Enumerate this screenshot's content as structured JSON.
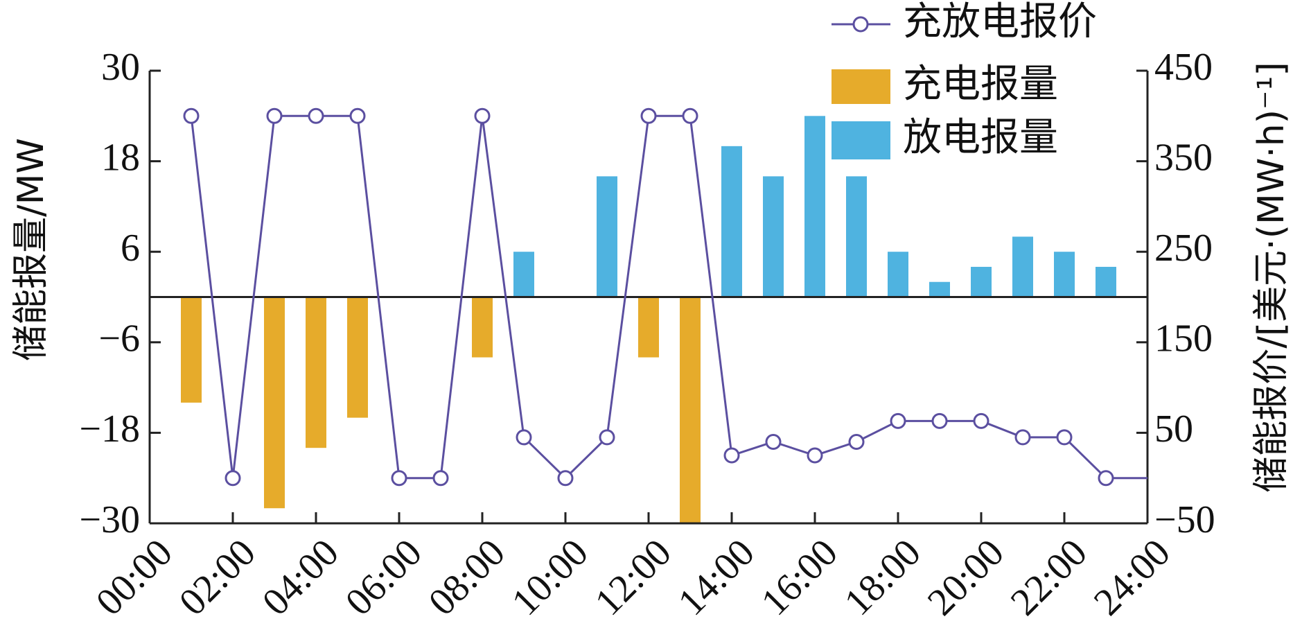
{
  "chart_data": {
    "type": "bar",
    "xlabel": "",
    "y_left_label": "储能报量/MW",
    "y_right_label": "储能报价/[美元·(MW·h)⁻¹]",
    "x_tick_labels": [
      "00:00",
      "02:00",
      "04:00",
      "06:00",
      "08:00",
      "10:00",
      "12:00",
      "14:00",
      "16:00",
      "18:00",
      "20:00",
      "22:00",
      "24:00"
    ],
    "x_ticks": [
      0,
      2,
      4,
      6,
      8,
      10,
      12,
      14,
      16,
      18,
      20,
      22,
      24
    ],
    "x_range": [
      0,
      24
    ],
    "y_left_ticks": [
      30,
      18,
      6,
      -6,
      -18,
      -30
    ],
    "y_left_tick_labels": [
      "30",
      "18",
      "6",
      "−6",
      "−18",
      "−30"
    ],
    "y_left_range": [
      -30,
      30
    ],
    "y_right_ticks": [
      450,
      350,
      250,
      150,
      50,
      -50
    ],
    "y_right_tick_labels": [
      "450",
      "350",
      "250",
      "150",
      "50",
      "−50"
    ],
    "y_right_range": [
      -50,
      450
    ],
    "legend_position": "top-right",
    "series": [
      {
        "name": "充放电报价",
        "kind": "line",
        "axis": "right",
        "color": "#5b4fa0",
        "x": [
          1,
          2,
          3,
          4,
          5,
          6,
          7,
          8,
          9,
          10,
          11,
          12,
          13,
          14,
          15,
          16,
          17,
          18,
          19,
          20,
          21,
          22,
          23,
          24
        ],
        "values": [
          400,
          0,
          400,
          400,
          400,
          0,
          0,
          400,
          45,
          0,
          45,
          400,
          400,
          25,
          40,
          25,
          40,
          63,
          63,
          63,
          45,
          45,
          0,
          0
        ]
      },
      {
        "name": "充电报量",
        "kind": "bar",
        "axis": "left",
        "color": "#e6ab2b",
        "x": [
          1,
          3,
          4,
          5,
          8,
          12,
          13
        ],
        "values": [
          -14,
          -28,
          -20,
          -16,
          -8,
          -8,
          -30
        ]
      },
      {
        "name": "放电报量",
        "kind": "bar",
        "axis": "left",
        "color": "#4fb3e0",
        "x": [
          9,
          11,
          14,
          15,
          16,
          17,
          18,
          19,
          20,
          21,
          22,
          23
        ],
        "values": [
          6,
          16,
          20,
          16,
          24,
          16,
          6,
          2,
          4,
          8,
          6,
          4
        ]
      }
    ]
  }
}
